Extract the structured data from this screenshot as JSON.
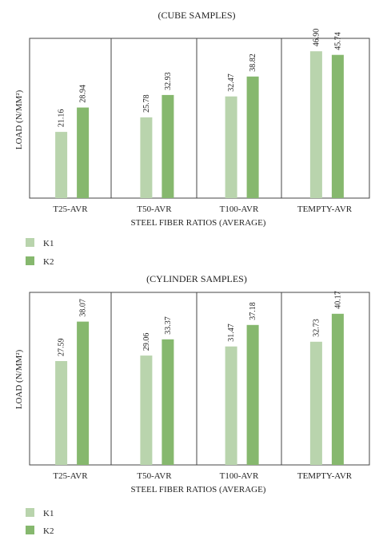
{
  "legend": [
    {
      "label": "K1",
      "color": "#b9d4ad"
    },
    {
      "label": "K2",
      "color": "#86b86e"
    }
  ],
  "chart_data": [
    {
      "type": "bar",
      "title": "(CUBE SAMPLES)",
      "xlabel": "STEEL FIBER RATIOS (AVERAGE)",
      "ylabel": "LOAD (N/MM²)",
      "categories": [
        "T25-AVR",
        "T50-AVR",
        "T100-AVR",
        "TEMPTY-AVR"
      ],
      "series": [
        {
          "name": "K1",
          "color": "#b9d4ad",
          "values": [
            21.16,
            25.78,
            32.47,
            46.9
          ],
          "labels": [
            "21.16",
            "25.78",
            "32.47",
            "46.90"
          ]
        },
        {
          "name": "K2",
          "color": "#86b86e",
          "values": [
            28.94,
            32.93,
            38.82,
            45.74
          ],
          "labels": [
            "28.94",
            "32.93",
            "38.82",
            "45.74"
          ]
        }
      ],
      "ylim": [
        0,
        50
      ],
      "grid": false,
      "legend_position": "bottom-left"
    },
    {
      "type": "bar",
      "title": "(CYLINDER SAMPLES)",
      "xlabel": "STEEL FIBER RATIOS (AVERAGE)",
      "ylabel": "LOAD (N/MM²)",
      "categories": [
        "T25-AVR",
        "T50-AVR",
        "T100-AVR",
        "TEMPTY-AVR"
      ],
      "series": [
        {
          "name": "K1",
          "color": "#b9d4ad",
          "values": [
            27.59,
            29.06,
            31.47,
            32.73
          ],
          "labels": [
            "27.59",
            "29.06",
            "31.47",
            "32.73"
          ]
        },
        {
          "name": "K2",
          "color": "#86b86e",
          "values": [
            38.07,
            33.37,
            37.18,
            40.17
          ],
          "labels": [
            "38.07",
            "33.37",
            "37.18",
            "40.17"
          ]
        }
      ],
      "ylim": [
        0,
        45
      ],
      "grid": false,
      "legend_position": "bottom-left"
    }
  ]
}
